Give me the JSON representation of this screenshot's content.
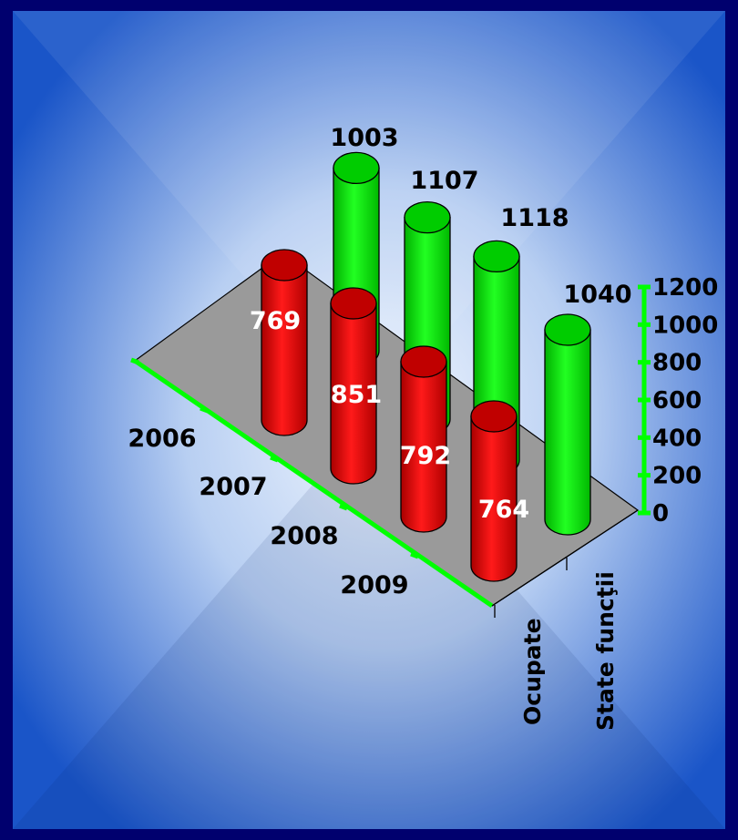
{
  "chart_data": {
    "type": "bar",
    "subtype": "3d-cylinder",
    "categories": [
      "2006",
      "2007",
      "2008",
      "2009"
    ],
    "series": [
      {
        "name": "Ocupate",
        "values": [
          769,
          851,
          792,
          764
        ],
        "color": "#ff0000"
      },
      {
        "name": "State funcţii",
        "values": [
          1003,
          1107,
          1118,
          1040
        ],
        "color": "#00ee00"
      }
    ],
    "ylim": [
      0,
      1200
    ],
    "yticks": [
      "0",
      "200",
      "400",
      "600",
      "800",
      "1000",
      "1200"
    ],
    "axis_color": "#00ff00",
    "floor_color": "#9a9a9a",
    "legend": "none"
  }
}
